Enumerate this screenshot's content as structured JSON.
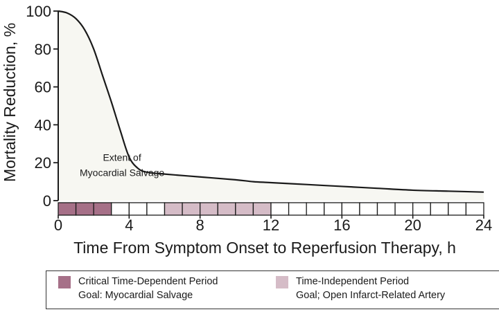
{
  "chart_data": {
    "type": "area",
    "xlabel": "Time From Symptom Onset to Reperfusion Therapy, h",
    "ylabel": "Mortality Reduction, %",
    "xlim": [
      0,
      24
    ],
    "ylim": [
      0,
      100
    ],
    "xticks": [
      0,
      4,
      8,
      12,
      16,
      20,
      24
    ],
    "yticks": [
      0,
      20,
      40,
      60,
      80,
      100
    ],
    "series": [
      {
        "x": [
          0,
          0.5,
          1,
          1.5,
          2,
          2.5,
          3,
          3.5,
          4,
          4.5,
          5,
          6,
          8,
          10,
          11,
          12,
          14,
          16,
          18,
          20,
          22,
          24
        ],
        "values": [
          100,
          99,
          96,
          90,
          80,
          66,
          52,
          37,
          23,
          17,
          15,
          14,
          12.5,
          11,
          10,
          9.5,
          8.5,
          7.5,
          6.5,
          5.5,
          5,
          4.5
        ]
      }
    ],
    "annotations": [
      {
        "text": "Extent of",
        "x": 3.6,
        "y": 21
      },
      {
        "text": "Myocardial Salvage",
        "x": 3.6,
        "y": 13
      }
    ],
    "timeline": {
      "cells": 24,
      "critical_cells": [
        0,
        1,
        2
      ],
      "independent_cells": [
        6,
        7,
        8,
        9,
        10,
        11
      ]
    },
    "legend": [
      {
        "color": "#a67088",
        "line1": "Critical Time-Dependent Period",
        "line2": "Goal: Myocardial Salvage"
      },
      {
        "color": "#d5bcc7",
        "line1": "Time-Independent Period",
        "line2": "Goal; Open Infarct-Related Artery"
      }
    ],
    "colors": {
      "critical": "#a67088",
      "independent": "#d5bcc7",
      "area_fill": "#f7f7f2",
      "line": "#1a1a1a"
    },
    "grid": false,
    "legend_position": "bottom"
  }
}
